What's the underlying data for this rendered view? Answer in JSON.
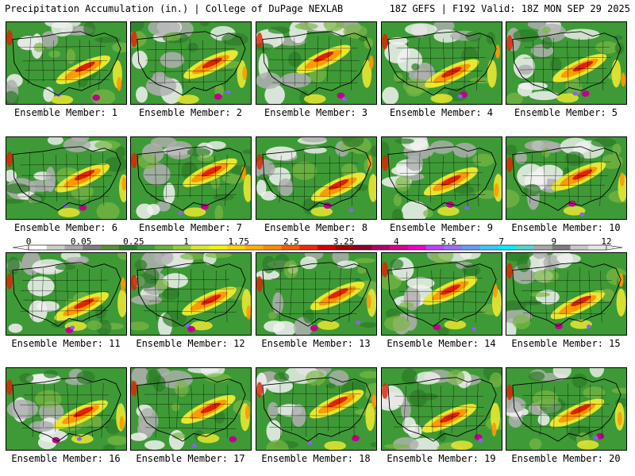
{
  "header": {
    "left": "Precipitation Accumulation (in.) | College of DuPage NEXLAB",
    "right": "18Z GEFS | F192 Valid: 18Z MON SEP 29 2025"
  },
  "colorbar": {
    "labels": [
      "0",
      "0.05",
      "0.25",
      "1",
      "1.75",
      "2.5",
      "3.25",
      "4",
      "5.5",
      "7",
      "9",
      "12"
    ],
    "colors": [
      "#ffffff",
      "#cfcfcf",
      "#a8a8a8",
      "#7e7e7e",
      "#5a8f3c",
      "#2f7d2a",
      "#3fa03a",
      "#66b33a",
      "#98cc33",
      "#d8e82e",
      "#f5f500",
      "#ffd500",
      "#ffb000",
      "#ff8a00",
      "#ff5a00",
      "#f02a00",
      "#d40000",
      "#a80000",
      "#8a0030",
      "#b0006a",
      "#d8008c",
      "#f000c8",
      "#c040ff",
      "#9a70ff",
      "#6a9aff",
      "#3cc8ff",
      "#00f0ff",
      "#50d8c8",
      "#a8a8a8",
      "#7e7e7e",
      "#c8c8c8",
      "#e6e6e6"
    ]
  },
  "panels": [
    {
      "caption": "Ensemble Member: 1"
    },
    {
      "caption": "Ensemble Member: 2"
    },
    {
      "caption": "Ensemble Member: 3"
    },
    {
      "caption": "Ensemble Member: 4"
    },
    {
      "caption": "Ensemble Member: 5"
    },
    {
      "caption": "Ensemble Member: 6"
    },
    {
      "caption": "Ensemble Member: 7"
    },
    {
      "caption": "Ensemble Member: 8"
    },
    {
      "caption": "Ensemble Member: 9"
    },
    {
      "caption": "Ensemble Member: 10"
    },
    {
      "caption": "Ensemble Member: 11"
    },
    {
      "caption": "Ensemble Member: 12"
    },
    {
      "caption": "Ensemble Member: 13"
    },
    {
      "caption": "Ensemble Member: 14"
    },
    {
      "caption": "Ensemble Member: 15"
    },
    {
      "caption": "Ensemble Member: 16"
    },
    {
      "caption": "Ensemble Member: 17"
    },
    {
      "caption": "Ensemble Member: 18"
    },
    {
      "caption": "Ensemble Member: 19"
    },
    {
      "caption": "Ensemble Member: 20"
    }
  ],
  "map_colors": {
    "base": "#3e9a36",
    "dark_green": "#2c7a26",
    "light_green": "#7ab844",
    "yellow": "#e8e830",
    "orange": "#ff9a00",
    "red": "#e02000",
    "magenta": "#c0008c",
    "purple": "#8a60ff",
    "gray": "#b0b0b0",
    "white": "#f2f2f2",
    "border": "#000000"
  }
}
